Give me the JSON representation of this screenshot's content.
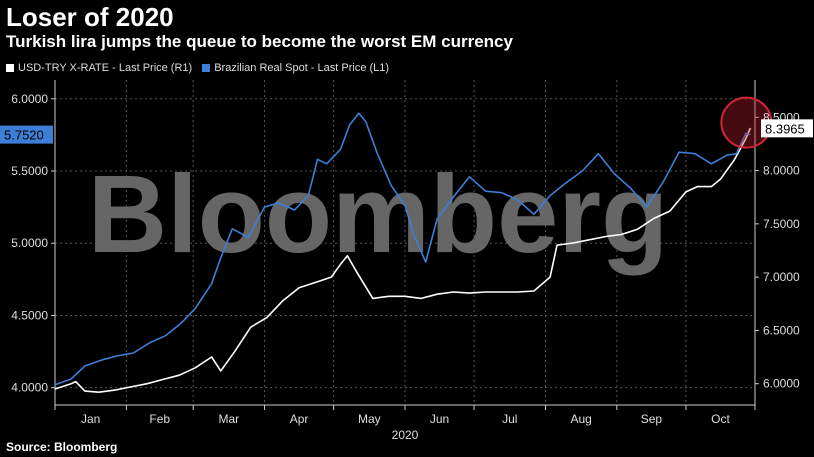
{
  "title": "Loser of 2020",
  "subtitle": "Turkish lira jumps the queue to become the worst EM currency",
  "source": "Source: Bloomberg",
  "watermark": "Bloomberg",
  "colors": {
    "usd_try": "#ffffff",
    "brl": "#3d7fd6",
    "background": "#000000",
    "highlight": "#d0273a"
  },
  "chart_data": {
    "type": "line",
    "xlabel": "2020",
    "x_tick_labels": [
      "Jan",
      "Feb",
      "Mar",
      "Apr",
      "May",
      "Jun",
      "Jul",
      "Aug",
      "Sep",
      "Oct"
    ],
    "x_range": [
      "2020-01-01",
      "2020-10-31"
    ],
    "left_axis": {
      "ticks": [
        "4.0000",
        "4.5000",
        "5.0000",
        "5.5000",
        "6.0000"
      ],
      "range": [
        3.88,
        6.13
      ]
    },
    "right_axis": {
      "ticks": [
        "6.0000",
        "6.5000",
        "7.0000",
        "7.5000",
        "8.0000",
        "8.5000"
      ],
      "range": [
        5.8,
        8.85
      ]
    },
    "last_labels": {
      "left": "5.7520",
      "right": "8.3965"
    },
    "legend_position": "top-left",
    "series": [
      {
        "name": "USD-TRY X-RATE - Last Price (R1)",
        "axis": "right",
        "color": "#ffffff",
        "points": [
          [
            "2020-01-01",
            5.95
          ],
          [
            "2020-01-08",
            6.0
          ],
          [
            "2020-01-10",
            6.02
          ],
          [
            "2020-01-14",
            5.93
          ],
          [
            "2020-01-20",
            5.92
          ],
          [
            "2020-01-27",
            5.94
          ],
          [
            "2020-02-03",
            5.97
          ],
          [
            "2020-02-10",
            6.0
          ],
          [
            "2020-02-17",
            6.04
          ],
          [
            "2020-02-24",
            6.08
          ],
          [
            "2020-03-02",
            6.15
          ],
          [
            "2020-03-09",
            6.25
          ],
          [
            "2020-03-13",
            6.12
          ],
          [
            "2020-03-19",
            6.3
          ],
          [
            "2020-03-26",
            6.53
          ],
          [
            "2020-04-02",
            6.62
          ],
          [
            "2020-04-09",
            6.78
          ],
          [
            "2020-04-16",
            6.9
          ],
          [
            "2020-04-23",
            6.95
          ],
          [
            "2020-04-30",
            7.0
          ],
          [
            "2020-05-04",
            7.12
          ],
          [
            "2020-05-07",
            7.2
          ],
          [
            "2020-05-11",
            7.05
          ],
          [
            "2020-05-18",
            6.8
          ],
          [
            "2020-05-25",
            6.82
          ],
          [
            "2020-06-01",
            6.82
          ],
          [
            "2020-06-08",
            6.8
          ],
          [
            "2020-06-15",
            6.84
          ],
          [
            "2020-06-22",
            6.86
          ],
          [
            "2020-06-29",
            6.85
          ],
          [
            "2020-07-06",
            6.86
          ],
          [
            "2020-07-13",
            6.86
          ],
          [
            "2020-07-20",
            6.86
          ],
          [
            "2020-07-27",
            6.87
          ],
          [
            "2020-08-03",
            7.0
          ],
          [
            "2020-08-06",
            7.3
          ],
          [
            "2020-08-13",
            7.32
          ],
          [
            "2020-08-20",
            7.35
          ],
          [
            "2020-08-27",
            7.38
          ],
          [
            "2020-09-03",
            7.4
          ],
          [
            "2020-09-10",
            7.45
          ],
          [
            "2020-09-17",
            7.55
          ],
          [
            "2020-09-24",
            7.62
          ],
          [
            "2020-10-01",
            7.8
          ],
          [
            "2020-10-06",
            7.85
          ],
          [
            "2020-10-12",
            7.85
          ],
          [
            "2020-10-16",
            7.92
          ],
          [
            "2020-10-22",
            8.1
          ],
          [
            "2020-10-27",
            8.3
          ],
          [
            "2020-10-29",
            8.4
          ]
        ]
      },
      {
        "name": "Brazilian Real Spot - Last Price (L1)",
        "axis": "left",
        "color": "#3d7fd6",
        "points": [
          [
            "2020-01-01",
            4.02
          ],
          [
            "2020-01-08",
            4.06
          ],
          [
            "2020-01-14",
            4.15
          ],
          [
            "2020-01-21",
            4.19
          ],
          [
            "2020-01-28",
            4.22
          ],
          [
            "2020-02-04",
            4.24
          ],
          [
            "2020-02-11",
            4.31
          ],
          [
            "2020-02-18",
            4.36
          ],
          [
            "2020-02-25",
            4.45
          ],
          [
            "2020-03-02",
            4.55
          ],
          [
            "2020-03-09",
            4.72
          ],
          [
            "2020-03-13",
            4.9
          ],
          [
            "2020-03-18",
            5.1
          ],
          [
            "2020-03-25",
            5.04
          ],
          [
            "2020-04-01",
            5.25
          ],
          [
            "2020-04-07",
            5.28
          ],
          [
            "2020-04-14",
            5.23
          ],
          [
            "2020-04-20",
            5.33
          ],
          [
            "2020-04-24",
            5.58
          ],
          [
            "2020-04-28",
            5.55
          ],
          [
            "2020-05-04",
            5.65
          ],
          [
            "2020-05-08",
            5.82
          ],
          [
            "2020-05-12",
            5.9
          ],
          [
            "2020-05-15",
            5.84
          ],
          [
            "2020-05-20",
            5.62
          ],
          [
            "2020-05-26",
            5.4
          ],
          [
            "2020-06-01",
            5.26
          ],
          [
            "2020-06-05",
            5.05
          ],
          [
            "2020-06-10",
            4.87
          ],
          [
            "2020-06-15",
            5.17
          ],
          [
            "2020-06-22",
            5.32
          ],
          [
            "2020-06-29",
            5.46
          ],
          [
            "2020-07-06",
            5.36
          ],
          [
            "2020-07-13",
            5.35
          ],
          [
            "2020-07-20",
            5.3
          ],
          [
            "2020-07-27",
            5.2
          ],
          [
            "2020-08-03",
            5.33
          ],
          [
            "2020-08-10",
            5.42
          ],
          [
            "2020-08-17",
            5.5
          ],
          [
            "2020-08-24",
            5.62
          ],
          [
            "2020-08-31",
            5.48
          ],
          [
            "2020-09-07",
            5.38
          ],
          [
            "2020-09-14",
            5.25
          ],
          [
            "2020-09-21",
            5.42
          ],
          [
            "2020-09-28",
            5.63
          ],
          [
            "2020-10-05",
            5.62
          ],
          [
            "2020-10-12",
            5.55
          ],
          [
            "2020-10-19",
            5.61
          ],
          [
            "2020-10-23",
            5.62
          ],
          [
            "2020-10-27",
            5.76
          ],
          [
            "2020-10-29",
            5.752
          ]
        ]
      }
    ]
  }
}
